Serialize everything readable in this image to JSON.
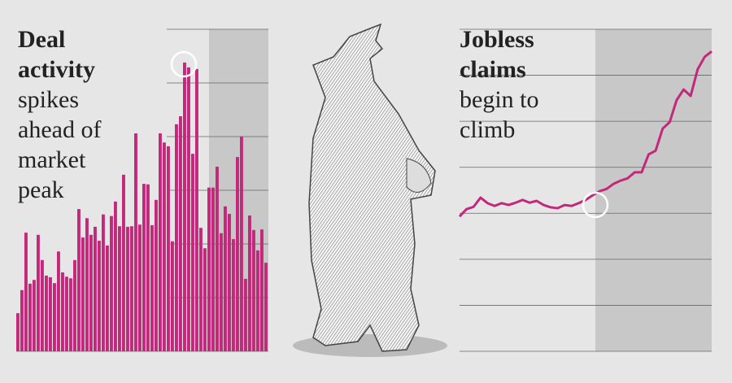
{
  "chart_data": [
    {
      "type": "bar",
      "title": "Deal activity",
      "subtitle": "spikes ahead of market peak",
      "color": "#c4287a",
      "grid": true,
      "ylim": [
        0,
        6
      ],
      "yticks": [
        1,
        2,
        3,
        4,
        5,
        6
      ],
      "values": [
        0.71,
        1.14,
        2.21,
        1.26,
        1.33,
        2.17,
        1.7,
        1.41,
        1.38,
        1.27,
        1.86,
        1.47,
        1.39,
        1.36,
        1.7,
        2.65,
        2.12,
        2.48,
        2.17,
        2.32,
        2.06,
        2.55,
        1.97,
        2.52,
        2.79,
        2.33,
        3.29,
        2.32,
        2.33,
        4.06,
        2.36,
        3.12,
        3.11,
        2.35,
        2.82,
        4.06,
        3.89,
        3.82,
        2.05,
        4.23,
        4.38,
        5.38,
        5.29,
        3.68,
        5.26,
        2.3,
        1.92,
        3.05,
        3.05,
        3.44,
        2.2,
        2.7,
        2.56,
        2.09,
        3.62,
        4.0,
        1.35,
        2.53,
        2.26,
        1.88,
        2.27,
        1.65
      ]
    },
    {
      "type": "line",
      "title": "Jobless claims",
      "subtitle": "begin to climb",
      "color": "#c4287a",
      "grid": true,
      "ylim": [
        0,
        7
      ],
      "yticks": [
        1,
        2,
        3,
        4,
        5,
        6,
        7
      ],
      "values": [
        2.93,
        3.09,
        3.14,
        3.34,
        3.22,
        3.16,
        3.22,
        3.18,
        3.23,
        3.29,
        3.23,
        3.27,
        3.18,
        3.13,
        3.11,
        3.18,
        3.16,
        3.22,
        3.29,
        3.39,
        3.48,
        3.53,
        3.64,
        3.71,
        3.76,
        3.89,
        3.89,
        4.28,
        4.36,
        4.84,
        4.98,
        5.46,
        5.69,
        5.55,
        6.13,
        6.4,
        6.52
      ]
    }
  ]
}
